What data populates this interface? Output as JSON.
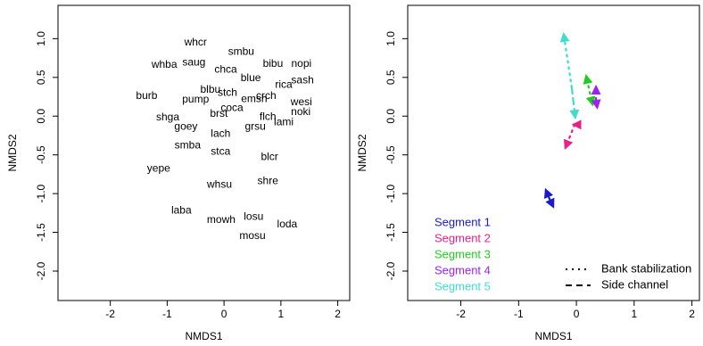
{
  "chart_data": [
    {
      "type": "text_scatter",
      "xlabel": "NMDS1",
      "ylabel": "NMDS2",
      "xlim": [
        -2.92,
        2.21
      ],
      "ylim": [
        -2.38,
        1.43
      ],
      "xticks": [
        -2,
        -1,
        0,
        1,
        2
      ],
      "yticks": [
        {
          "value": 1,
          "label": "1.0"
        },
        0.5,
        {
          "value": 0,
          "label": "0.0"
        },
        -0.5,
        {
          "value": -1,
          "label": "-1.0"
        },
        -1.5,
        {
          "value": -2,
          "label": "-2.0"
        }
      ],
      "labels": [
        "whcr",
        "smbu",
        "whba",
        "saug",
        "chca",
        "bibu",
        "nopi",
        "blue",
        "rica",
        "sash",
        "burb",
        "pump",
        "blbu",
        "stch",
        "emsh",
        "crch",
        "wesi",
        "coca",
        "noki",
        "brst",
        "shga",
        "flch",
        "lami",
        "goey",
        "grsu",
        "lach",
        "smba",
        "stca",
        "blcr",
        "yepe",
        "shre",
        "whsu",
        "laba",
        "losu",
        "mowh",
        "loda",
        "mosu"
      ],
      "x": [
        -0.5,
        0.3,
        -1.05,
        -0.53,
        0.03,
        0.86,
        1.36,
        0.47,
        1.05,
        1.38,
        -1.36,
        -0.5,
        -0.24,
        0.06,
        0.53,
        0.74,
        1.36,
        0.14,
        1.35,
        -0.09,
        -0.99,
        0.77,
        1.05,
        -0.67,
        0.55,
        -0.06,
        -0.64,
        -0.06,
        0.8,
        -1.15,
        0.77,
        -0.08,
        -0.75,
        0.52,
        -0.05,
        1.11,
        0.5
      ],
      "y": [
        0.95,
        0.83,
        0.66,
        0.69,
        0.6,
        0.67,
        0.67,
        0.49,
        0.4,
        0.46,
        0.26,
        0.21,
        0.34,
        0.3,
        0.22,
        0.26,
        0.18,
        0.1,
        0.05,
        0.03,
        -0.02,
        -0.01,
        -0.08,
        -0.14,
        -0.14,
        -0.23,
        -0.38,
        -0.46,
        -0.53,
        -0.68,
        -0.84,
        -0.89,
        -1.22,
        -1.3,
        -1.34,
        -1.4,
        -1.55
      ]
    },
    {
      "type": "arrow",
      "xlabel": "NMDS1",
      "ylabel": "NMDS2",
      "xlim": [
        -2.92,
        2.13
      ],
      "ylim": [
        -2.38,
        1.43
      ],
      "xticks": [
        -2,
        -1,
        0,
        1,
        2
      ],
      "yticks": [
        {
          "value": 1,
          "label": "1.0"
        },
        0.5,
        {
          "value": 0,
          "label": "0.0"
        },
        -0.5,
        {
          "value": -1,
          "label": "-1.0"
        },
        -1.5,
        {
          "value": -2,
          "label": "-2.0"
        }
      ],
      "line_styles": [
        {
          "name": "Bank stabilization",
          "dash": "dotted"
        },
        {
          "name": "Side channel",
          "dash": "dashed"
        }
      ],
      "series": [
        {
          "name": "Segment 1",
          "color": "#1a1acc",
          "x0": -0.47,
          "y0": -1.06,
          "bank": {
            "x": -0.53,
            "y": -0.95
          },
          "side": {
            "x": -0.4,
            "y": -1.17
          }
        },
        {
          "name": "Segment 2",
          "color": "#e8208a",
          "x0": -0.03,
          "y0": -0.11,
          "bank": {
            "x": -0.19,
            "y": -0.41
          },
          "side": {
            "x": -0.05,
            "y": -0.11
          }
        },
        {
          "name": "Segment 3",
          "color": "#22cc22",
          "x0": 0.26,
          "y0": 0.21,
          "bank": {
            "x": 0.17,
            "y": 0.52
          },
          "side": {
            "x": 0.28,
            "y": 0.15
          }
        },
        {
          "name": "Segment 4",
          "color": "#a020f0",
          "x0": 0.34,
          "y0": 0.21,
          "bank": {
            "x": 0.34,
            "y": 0.38
          },
          "side": {
            "x": 0.36,
            "y": 0.11
          }
        },
        {
          "name": "Segment 5",
          "color": "#40dcd0",
          "x0": -0.08,
          "y0": 0.37,
          "bank": {
            "x": -0.22,
            "y": 1.06
          },
          "side": {
            "x": -0.02,
            "y": -0.02
          }
        }
      ]
    }
  ]
}
